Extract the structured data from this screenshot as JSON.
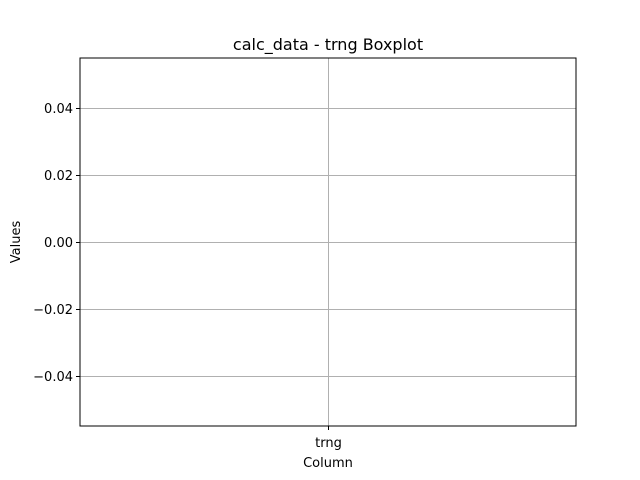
{
  "chart_data": {
    "type": "boxplot",
    "title": "calc_data - trng Boxplot",
    "xlabel": "Column",
    "ylabel": "Values",
    "categories": [
      "trng"
    ],
    "series": [
      {
        "values": []
      }
    ],
    "ylim": [
      -0.055,
      0.055
    ],
    "yticks": [
      -0.04,
      -0.02,
      0.0,
      0.02,
      0.04
    ],
    "ytick_labels": [
      "−0.04",
      "−0.02",
      "0.00",
      "0.02",
      "0.04"
    ],
    "grid": true,
    "legend": "none",
    "colors": {
      "background": "#ffffff",
      "grid": "#b0b0b0",
      "axes": "#000000",
      "text": "#000000"
    }
  }
}
